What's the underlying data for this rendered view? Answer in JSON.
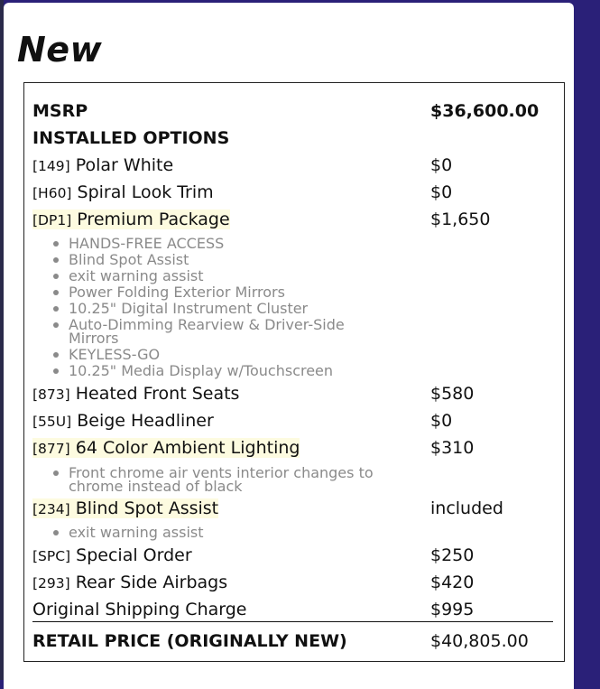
{
  "page": {
    "title": "New",
    "colors": {
      "background": "#2a2078",
      "highlight": "#fdfbe0",
      "bullet_text": "#8a8a8a"
    }
  },
  "sticker": {
    "msrp": {
      "label": "MSRP",
      "value": "$36,600.00"
    },
    "installed_options_label": "INSTALLED OPTIONS",
    "options": [
      {
        "code": "[149]",
        "name": "Polar White",
        "price": "$0"
      },
      {
        "code": "[H60]",
        "name": "Spiral Look Trim",
        "price": "$0"
      },
      {
        "code": "[DP1]",
        "name": "Premium Package",
        "price": "$1,650",
        "features": [
          "HANDS-FREE ACCESS",
          "Blind Spot Assist",
          "exit warning assist",
          "Power Folding Exterior Mirrors",
          "10.25\" Digital Instrument Cluster",
          "Auto-Dimming Rearview & Driver-Side Mirrors",
          "KEYLESS-GO",
          "10.25\" Media Display w/Touchscreen"
        ]
      },
      {
        "code": "[873]",
        "name": "Heated Front Seats",
        "price": "$580"
      },
      {
        "code": "[55U]",
        "name": "Beige Headliner",
        "price": "$0"
      },
      {
        "code": "[877]",
        "name": "64 Color Ambient Lighting",
        "price": "$310",
        "features": [
          "Front chrome air vents interior changes to chrome instead of black"
        ]
      },
      {
        "code": "[234]",
        "name": "Blind Spot Assist",
        "price": "included",
        "features": [
          "exit warning assist"
        ]
      },
      {
        "code": "[SPC]",
        "name": "Special Order",
        "price": "$250"
      },
      {
        "code": "[293]",
        "name": "Rear Side Airbags",
        "price": "$420"
      }
    ],
    "shipping": {
      "label": "Original Shipping Charge",
      "value": "$995"
    },
    "retail": {
      "label": "RETAIL PRICE (ORIGINALLY NEW)",
      "value": "$40,805.00"
    }
  }
}
